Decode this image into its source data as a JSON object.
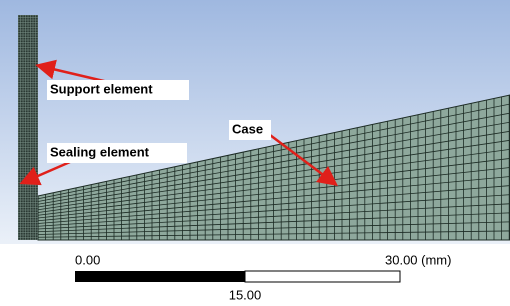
{
  "labels": {
    "support": "Support element",
    "sealing": "Sealing element",
    "case": "Case"
  },
  "scale": {
    "start": "0.00",
    "end": "30.00 (mm)",
    "mid": "15.00"
  }
}
